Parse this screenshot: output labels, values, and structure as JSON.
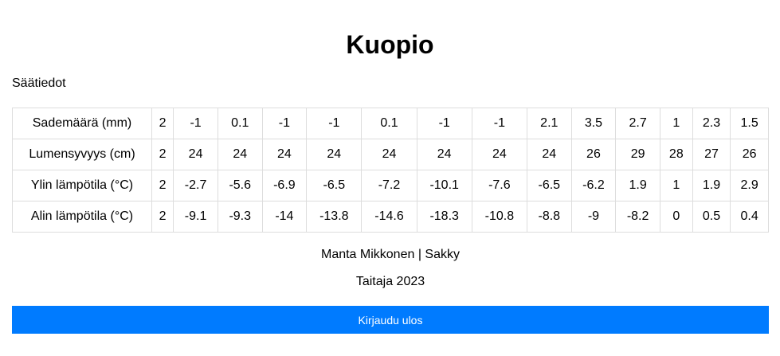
{
  "header": {
    "city": "Kuopio",
    "subtitle": "Säätiedot"
  },
  "weather_table": {
    "rows": [
      {
        "label": "Sademäärä (mm)",
        "values": [
          "2",
          "-1",
          "0.1",
          "-1",
          "-1",
          "0.1",
          "-1",
          "-1",
          "2.1",
          "3.5",
          "2.7",
          "1",
          "2.3",
          "1.5"
        ]
      },
      {
        "label": "Lumensyvyys (cm)",
        "values": [
          "2",
          "24",
          "24",
          "24",
          "24",
          "24",
          "24",
          "24",
          "24",
          "26",
          "29",
          "28",
          "27",
          "26"
        ]
      },
      {
        "label": "Ylin lämpötila (°C)",
        "values": [
          "2",
          "-2.7",
          "-5.6",
          "-6.9",
          "-6.5",
          "-7.2",
          "-10.1",
          "-7.6",
          "-6.5",
          "-6.2",
          "1.9",
          "1",
          "1.9",
          "2.9"
        ]
      },
      {
        "label": "Alin lämpötila (°C)",
        "values": [
          "2",
          "-9.1",
          "-9.3",
          "-14",
          "-13.8",
          "-14.6",
          "-18.3",
          "-10.8",
          "-8.8",
          "-9",
          "-8.2",
          "0",
          "0.5",
          "0.4"
        ]
      }
    ]
  },
  "footer": {
    "author": "Manta Mikkonen | Sakky",
    "event": "Taitaja 2023"
  },
  "actions": {
    "logout_label": "Kirjaudu ulos"
  },
  "colors": {
    "button_bg": "#007bff",
    "button_text": "#ffffff",
    "table_border": "#dddddd"
  }
}
